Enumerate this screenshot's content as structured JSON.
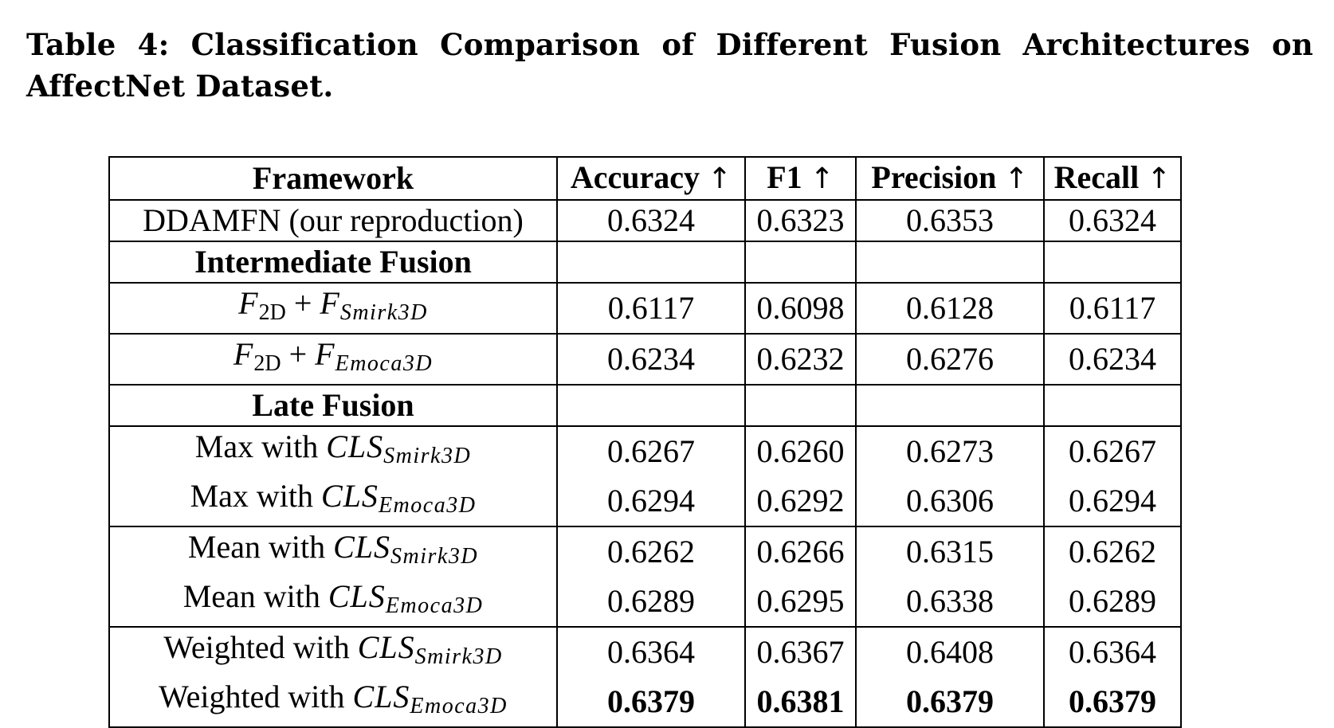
{
  "caption": "Table 4: Classification Comparison of Different Fusion Architectures on AffectNet Dataset.",
  "table": {
    "headers": {
      "framework": "Framework",
      "accuracy": "Accuracy",
      "f1": "F1",
      "precision": "Precision",
      "recall": "Recall",
      "arrow": "↑"
    },
    "baseline": {
      "framework": "DDAMFN (our reproduction)",
      "accuracy": "0.6324",
      "f1": "0.6323",
      "precision": "0.6353",
      "recall": "0.6324"
    },
    "intermediate": {
      "section_label": "Intermediate Fusion",
      "plus": "+",
      "var_f": "F",
      "sub_2d": "2D",
      "rows": [
        {
          "sub_second": "Smirk3D",
          "accuracy": "0.6117",
          "f1": "0.6098",
          "precision": "0.6128",
          "recall": "0.6117"
        },
        {
          "sub_second": "Emoca3D",
          "accuracy": "0.6234",
          "f1": "0.6232",
          "precision": "0.6276",
          "recall": "0.6234"
        }
      ]
    },
    "late": {
      "section_label": "Late Fusion",
      "cls": "CLS",
      "rows": [
        {
          "prefix": "Max with",
          "sub": "Smirk3D",
          "accuracy": "0.6267",
          "f1": "0.6260",
          "precision": "0.6273",
          "recall": "0.6267"
        },
        {
          "prefix": "Max with",
          "sub": "Emoca3D",
          "accuracy": "0.6294",
          "f1": "0.6292",
          "precision": "0.6306",
          "recall": "0.6294"
        },
        {
          "prefix": "Mean with",
          "sub": "Smirk3D",
          "accuracy": "0.6262",
          "f1": "0.6266",
          "precision": "0.6315",
          "recall": "0.6262"
        },
        {
          "prefix": "Mean with",
          "sub": "Emoca3D",
          "accuracy": "0.6289",
          "f1": "0.6295",
          "precision": "0.6338",
          "recall": "0.6289"
        },
        {
          "prefix": "Weighted with",
          "sub": "Smirk3D",
          "accuracy": "0.6364",
          "f1": "0.6367",
          "precision": "0.6408",
          "recall": "0.6364"
        },
        {
          "prefix": "Weighted with",
          "sub": "Emoca3D",
          "accuracy": "0.6379",
          "f1": "0.6381",
          "precision": "0.6379",
          "recall": "0.6379"
        }
      ]
    }
  }
}
